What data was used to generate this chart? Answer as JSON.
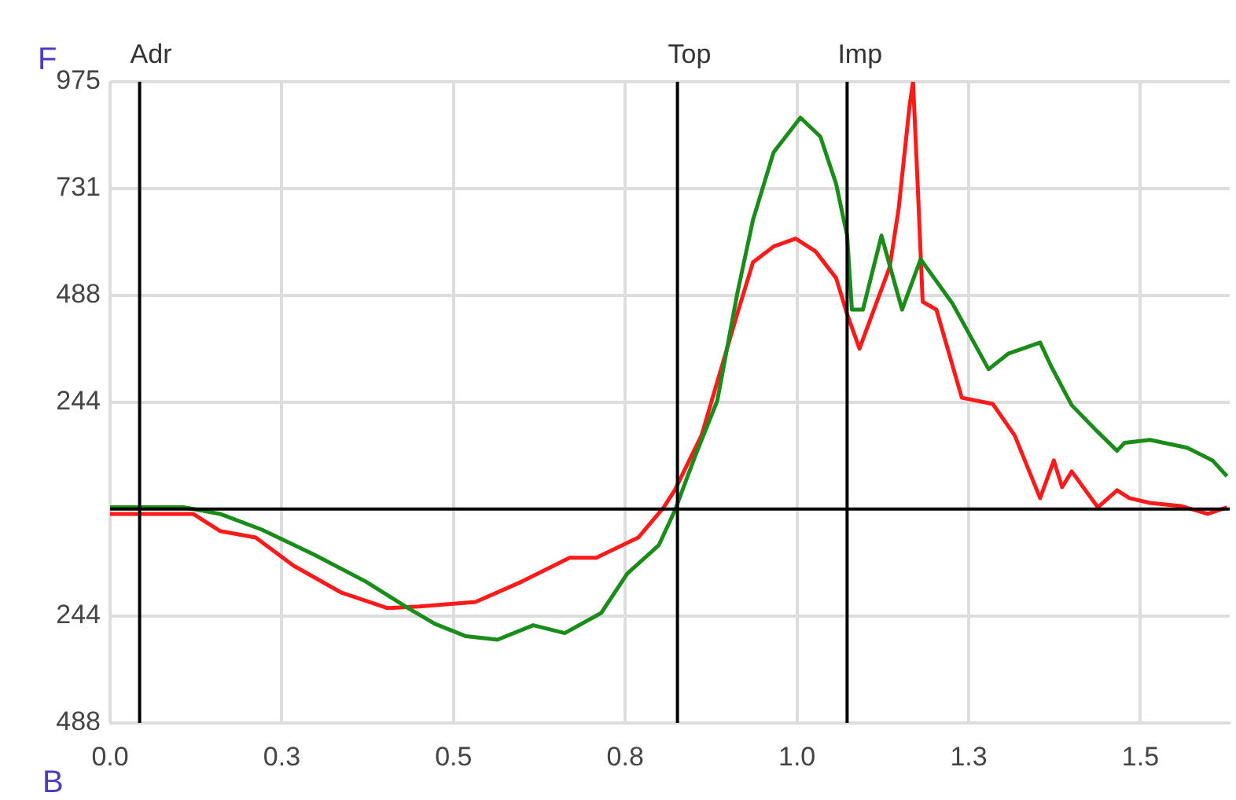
{
  "chart_data": {
    "type": "line",
    "xlim": [
      0,
      1.63
    ],
    "xticks": [
      {
        "value": 0,
        "label": "0.0"
      },
      {
        "value": 0.25,
        "label": "0.3"
      },
      0.5,
      {
        "value": 0.75,
        "label": "0.8"
      },
      {
        "value": 1,
        "label": "1.0"
      },
      {
        "value": 1.25,
        "label": "1.3"
      },
      1.5
    ],
    "ylim": [
      -488,
      975
    ],
    "yticks": [
      {
        "value": -488,
        "label": "488"
      },
      {
        "value": -244,
        "label": "244"
      },
      244,
      488,
      731,
      975
    ],
    "grid": true,
    "legend": false,
    "marker": "none",
    "line_style": "solid",
    "annotations": [
      "F",
      "B"
    ],
    "ref_lines": [
      {
        "axis": "y",
        "value": 0,
        "color": "#000000"
      },
      {
        "axis": "x",
        "value": 0.043,
        "label": "Adr",
        "color": "#000000"
      },
      {
        "axis": "x",
        "value": 0.826,
        "label": "Top",
        "color": "#000000"
      },
      {
        "axis": "x",
        "value": 1.073,
        "label": "Imp",
        "color": "#000000"
      }
    ],
    "series": [
      {
        "color": "#1a8c1a",
        "x": [
          0,
          0.107,
          0.16,
          0.221,
          0.297,
          0.372,
          0.434,
          0.473,
          0.518,
          0.564,
          0.616,
          0.662,
          0.715,
          0.753,
          0.799,
          0.822,
          0.852,
          0.884,
          0.913,
          0.936,
          0.966,
          1.005,
          1.034,
          1.057,
          1.073,
          1.08,
          1.096,
          1.123,
          1.153,
          1.18,
          1.226,
          1.279,
          1.308,
          1.354,
          1.37,
          1.4,
          1.438,
          1.466,
          1.477,
          1.514,
          1.568,
          1.605,
          1.626
        ],
        "values": [
          4,
          4,
          -11,
          -47,
          -104,
          -165,
          -226,
          -262,
          -290,
          -298,
          -265,
          -283,
          -237,
          -147,
          -82,
          -4,
          122,
          247,
          491,
          660,
          814,
          893,
          850,
          742,
          624,
          455,
          455,
          624,
          455,
          570,
          470,
          319,
          355,
          380,
          326,
          237,
          176,
          133,
          151,
          158,
          140,
          111,
          75
        ]
      },
      {
        "color": "#ff1a1a",
        "x": [
          0,
          0.121,
          0.16,
          0.212,
          0.267,
          0.336,
          0.404,
          0.45,
          0.532,
          0.6,
          0.669,
          0.708,
          0.769,
          0.806,
          0.822,
          0.861,
          0.874,
          0.913,
          0.936,
          0.966,
          0.998,
          1.027,
          1.057,
          1.073,
          1.091,
          1.135,
          1.148,
          1.164,
          1.169,
          1.176,
          1.183,
          1.203,
          1.24,
          1.285,
          1.317,
          1.354,
          1.374,
          1.386,
          1.4,
          1.438,
          1.466,
          1.484,
          1.514,
          1.559,
          1.598,
          1.626
        ],
        "values": [
          -11,
          -11,
          -50,
          -65,
          -129,
          -190,
          -226,
          -222,
          -212,
          -165,
          -111,
          -111,
          -65,
          4,
          43,
          168,
          237,
          445,
          563,
          599,
          617,
          588,
          527,
          445,
          366,
          552,
          685,
          921,
          975,
          731,
          473,
          455,
          254,
          240,
          168,
          25,
          111,
          50,
          86,
          4,
          43,
          25,
          14,
          7,
          -11,
          4
        ]
      }
    ]
  }
}
